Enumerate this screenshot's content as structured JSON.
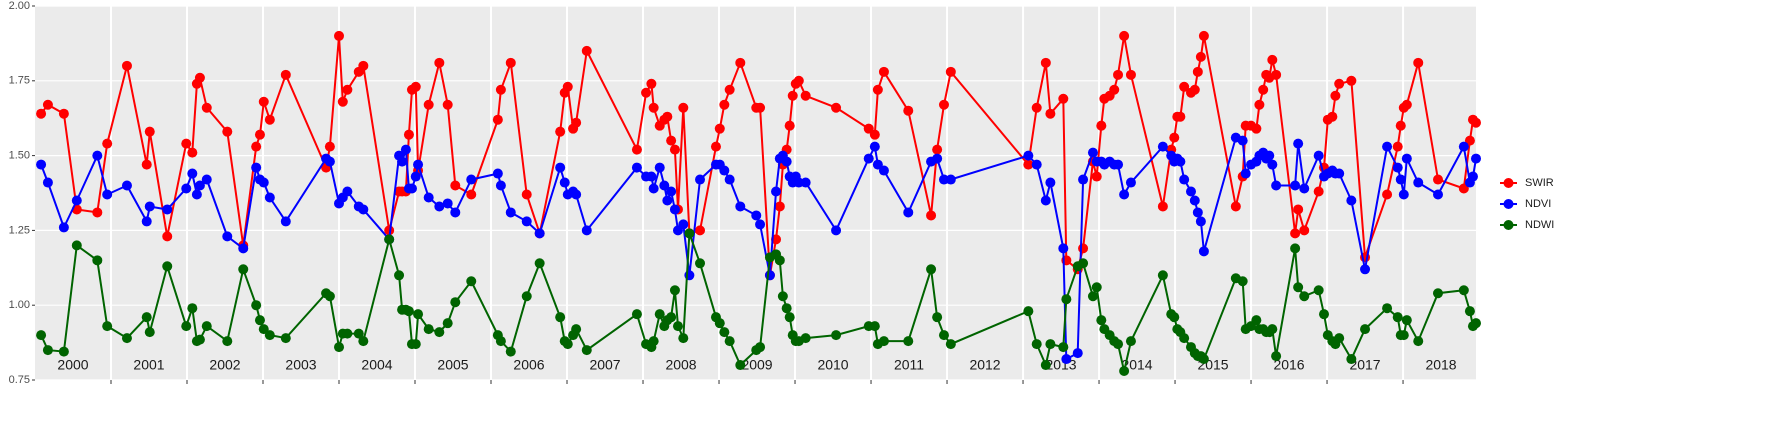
{
  "chart_data": {
    "type": "line",
    "xlim": [
      2000,
      2018.96
    ],
    "xticks": [
      {
        "value": 2000,
        "label": "2000"
      },
      {
        "value": 2001,
        "label": "2001"
      },
      {
        "value": 2002,
        "label": "2002"
      },
      {
        "value": 2003,
        "label": "2003"
      },
      {
        "value": 2004,
        "label": "2004"
      },
      {
        "value": 2005,
        "label": "2005"
      },
      {
        "value": 2006,
        "label": "2006"
      },
      {
        "value": 2007,
        "label": "2007"
      },
      {
        "value": 2008,
        "label": "2008"
      },
      {
        "value": 2009,
        "label": "2009"
      },
      {
        "value": 2010,
        "label": "2010"
      },
      {
        "value": 2011,
        "label": "2011"
      },
      {
        "value": 2012,
        "label": "2012"
      },
      {
        "value": 2013,
        "label": "2013"
      },
      {
        "value": 2014,
        "label": "2014"
      },
      {
        "value": 2015,
        "label": "2015"
      },
      {
        "value": 2016,
        "label": "2016"
      },
      {
        "value": 2017,
        "label": "2017"
      },
      {
        "value": 2018,
        "label": "2018"
      }
    ],
    "ylim": [
      0.75,
      2.0
    ],
    "yticks": [
      0.75,
      {
        "value": 1,
        "label": "1.00"
      },
      1.25,
      {
        "value": 1.5,
        "label": "1.50"
      },
      1.75,
      {
        "value": 2,
        "label": "2.00"
      }
    ],
    "grid": true,
    "legend": "right",
    "x": [
      2000.08,
      2000.17,
      2000.38,
      2000.55,
      2000.82,
      2000.95,
      2001.21,
      2001.47,
      2001.51,
      2001.74,
      2001.99,
      2002.07,
      2002.13,
      2002.17,
      2002.26,
      2002.53,
      2002.74,
      2002.91,
      2002.96,
      2003.01,
      2003.09,
      2003.3,
      2003.83,
      2003.88,
      2004.0,
      2004.05,
      2004.11,
      2004.26,
      2004.32,
      2004.66,
      2004.79,
      2004.83,
      2004.88,
      2004.92,
      2004.96,
      2005.01,
      2005.04,
      2005.18,
      2005.32,
      2005.43,
      2005.53,
      2005.74,
      2006.09,
      2006.13,
      2006.26,
      2006.47,
      2006.64,
      2006.91,
      2006.97,
      2007.01,
      2007.08,
      2007.12,
      2007.26,
      2007.92,
      2008.04,
      2008.11,
      2008.14,
      2008.22,
      2008.28,
      2008.32,
      2008.37,
      2008.42,
      2008.46,
      2008.53,
      2008.61,
      2008.75,
      2008.96,
      2009.01,
      2009.07,
      2009.14,
      2009.28,
      2009.49,
      2009.54,
      2009.67,
      2009.75,
      2009.8,
      2009.84,
      2009.89,
      2009.93,
      2009.97,
      2010.01,
      2010.05,
      2010.14,
      2010.54,
      2010.97,
      2011.05,
      2011.09,
      2011.17,
      2011.49,
      2011.79,
      2011.87,
      2011.96,
      2012.05,
      2013.07,
      2013.18,
      2013.3,
      2013.36,
      2013.53,
      2013.57,
      2013.72,
      2013.79,
      2013.92,
      2013.97,
      2014.03,
      2014.07,
      2014.14,
      2014.2,
      2014.25,
      2014.33,
      2014.42,
      2014.84,
      2014.95,
      2014.99,
      2015.03,
      2015.07,
      2015.12,
      2015.21,
      2015.26,
      2015.3,
      2015.34,
      2015.38,
      2015.8,
      2015.89,
      2015.93,
      2016.0,
      2016.07,
      2016.11,
      2016.16,
      2016.2,
      2016.24,
      2016.28,
      2016.33,
      2016.58,
      2016.62,
      2016.7,
      2016.89,
      2016.96,
      2017.01,
      2017.07,
      2017.11,
      2017.16,
      2017.32,
      2017.5,
      2017.79,
      2017.93,
      2017.97,
      2018.01,
      2018.05,
      2018.2,
      2018.46,
      2018.8,
      2018.88,
      2018.92,
      2018.96
    ],
    "series": [
      {
        "name": "SWIR",
        "color": "#ff0000",
        "values": [
          1.64,
          1.67,
          1.64,
          1.32,
          1.31,
          1.54,
          1.8,
          1.47,
          1.58,
          1.23,
          1.54,
          1.51,
          1.74,
          1.76,
          1.66,
          1.58,
          1.2,
          1.53,
          1.57,
          1.68,
          1.62,
          1.77,
          1.46,
          1.53,
          1.9,
          1.68,
          1.72,
          1.78,
          1.8,
          1.25,
          1.38,
          1.38,
          1.38,
          1.57,
          1.72,
          1.73,
          1.45,
          1.67,
          1.81,
          1.67,
          1.4,
          1.37,
          1.62,
          1.72,
          1.81,
          1.37,
          1.24,
          1.58,
          1.71,
          1.73,
          1.59,
          1.61,
          1.85,
          1.52,
          1.71,
          1.74,
          1.66,
          1.6,
          1.62,
          1.63,
          1.55,
          1.52,
          1.32,
          1.66,
          1.24,
          1.25,
          1.53,
          1.59,
          1.67,
          1.72,
          1.81,
          1.66,
          1.66,
          1.1,
          1.22,
          1.33,
          1.47,
          1.52,
          1.6,
          1.7,
          1.74,
          1.75,
          1.7,
          1.66,
          1.59,
          1.57,
          1.72,
          1.78,
          1.65,
          1.3,
          1.52,
          1.67,
          1.78,
          1.47,
          1.66,
          1.81,
          1.64,
          1.69,
          1.15,
          1.12,
          1.19,
          1.48,
          1.43,
          1.6,
          1.69,
          1.7,
          1.72,
          1.77,
          1.9,
          1.77,
          1.33,
          1.52,
          1.56,
          1.63,
          1.63,
          1.73,
          1.71,
          1.72,
          1.78,
          1.83,
          1.9,
          1.33,
          1.43,
          1.6,
          1.6,
          1.59,
          1.67,
          1.72,
          1.77,
          1.76,
          1.82,
          1.77,
          1.24,
          1.32,
          1.25,
          1.38,
          1.46,
          1.62,
          1.63,
          1.7,
          1.74,
          1.75,
          1.16,
          1.37,
          1.53,
          1.6,
          1.66,
          1.67,
          1.81,
          1.42,
          1.39,
          1.55,
          1.62,
          1.61
        ]
      },
      {
        "name": "NDVI",
        "color": "#0000ff",
        "values": [
          1.47,
          1.41,
          1.26,
          1.35,
          1.5,
          1.37,
          1.4,
          1.28,
          1.33,
          1.32,
          1.39,
          1.44,
          1.37,
          1.4,
          1.42,
          1.23,
          1.19,
          1.46,
          1.42,
          1.41,
          1.36,
          1.28,
          1.49,
          1.48,
          1.34,
          1.36,
          1.38,
          1.33,
          1.32,
          1.22,
          1.5,
          1.48,
          1.52,
          1.39,
          1.39,
          1.43,
          1.47,
          1.36,
          1.33,
          1.34,
          1.31,
          1.42,
          1.44,
          1.4,
          1.31,
          1.28,
          1.24,
          1.46,
          1.41,
          1.37,
          1.38,
          1.37,
          1.25,
          1.46,
          1.43,
          1.43,
          1.39,
          1.46,
          1.4,
          1.35,
          1.38,
          1.32,
          1.25,
          1.27,
          1.1,
          1.42,
          1.47,
          1.47,
          1.45,
          1.42,
          1.33,
          1.3,
          1.27,
          1.1,
          1.38,
          1.49,
          1.5,
          1.48,
          1.43,
          1.41,
          1.43,
          1.41,
          1.41,
          1.25,
          1.49,
          1.53,
          1.47,
          1.45,
          1.31,
          1.48,
          1.49,
          1.42,
          1.42,
          1.5,
          1.47,
          1.35,
          1.41,
          1.19,
          0.82,
          0.84,
          1.42,
          1.51,
          1.48,
          1.48,
          1.47,
          1.48,
          1.47,
          1.47,
          1.37,
          1.41,
          1.53,
          1.5,
          1.48,
          1.49,
          1.48,
          1.42,
          1.38,
          1.35,
          1.31,
          1.28,
          1.18,
          1.56,
          1.55,
          1.44,
          1.47,
          1.48,
          1.5,
          1.51,
          1.49,
          1.5,
          1.47,
          1.4,
          1.4,
          1.54,
          1.39,
          1.5,
          1.43,
          1.44,
          1.45,
          1.44,
          1.44,
          1.35,
          1.12,
          1.53,
          1.46,
          1.42,
          1.37,
          1.49,
          1.41,
          1.37,
          1.53,
          1.41,
          1.43,
          1.49
        ]
      },
      {
        "name": "NDWI",
        "color": "#006400",
        "values": [
          0.9,
          0.85,
          0.845,
          1.2,
          1.15,
          0.93,
          0.89,
          0.96,
          0.91,
          1.13,
          0.93,
          0.99,
          0.88,
          0.885,
          0.93,
          0.88,
          1.12,
          1.0,
          0.95,
          0.92,
          0.9,
          0.89,
          1.04,
          1.03,
          0.86,
          0.905,
          0.905,
          0.905,
          0.88,
          1.22,
          1.1,
          0.985,
          0.985,
          0.98,
          0.87,
          0.87,
          0.97,
          0.92,
          0.91,
          0.94,
          1.01,
          1.08,
          0.9,
          0.88,
          0.845,
          1.03,
          1.14,
          0.96,
          0.88,
          0.87,
          0.9,
          0.92,
          0.85,
          0.97,
          0.87,
          0.86,
          0.88,
          0.97,
          0.93,
          0.95,
          0.96,
          1.05,
          0.93,
          0.89,
          1.24,
          1.14,
          0.96,
          0.94,
          0.91,
          0.88,
          0.8,
          0.85,
          0.86,
          1.16,
          1.17,
          1.15,
          1.03,
          0.99,
          0.96,
          0.9,
          0.88,
          0.88,
          0.89,
          0.9,
          0.93,
          0.93,
          0.87,
          0.88,
          0.88,
          1.12,
          0.96,
          0.9,
          0.87,
          0.98,
          0.87,
          0.8,
          0.87,
          0.86,
          1.02,
          1.13,
          1.14,
          1.03,
          1.06,
          0.95,
          0.92,
          0.9,
          0.88,
          0.87,
          0.78,
          0.88,
          1.1,
          0.97,
          0.96,
          0.92,
          0.91,
          0.89,
          0.86,
          0.84,
          0.83,
          0.83,
          0.82,
          1.09,
          1.08,
          0.92,
          0.93,
          0.95,
          0.92,
          0.92,
          0.91,
          0.91,
          0.92,
          0.83,
          1.19,
          1.06,
          1.03,
          1.05,
          0.97,
          0.9,
          0.88,
          0.87,
          0.89,
          0.82,
          0.92,
          0.99,
          0.96,
          0.9,
          0.9,
          0.95,
          0.88,
          1.04,
          1.05,
          0.98,
          0.93,
          0.94
        ]
      }
    ]
  }
}
